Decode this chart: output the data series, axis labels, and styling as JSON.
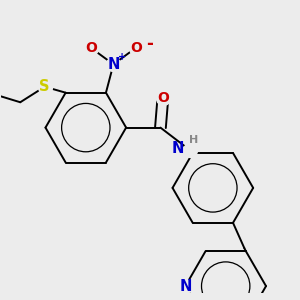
{
  "bg": "#ececec",
  "bc": "#000000",
  "lw": 1.4,
  "ring_r": 0.135,
  "colors": {
    "N": "#0000cc",
    "O": "#cc0000",
    "S": "#cccc00",
    "H": "#888888"
  },
  "fs": 9.0,
  "xlim": [
    0.0,
    1.0
  ],
  "ylim": [
    0.04,
    1.0
  ]
}
